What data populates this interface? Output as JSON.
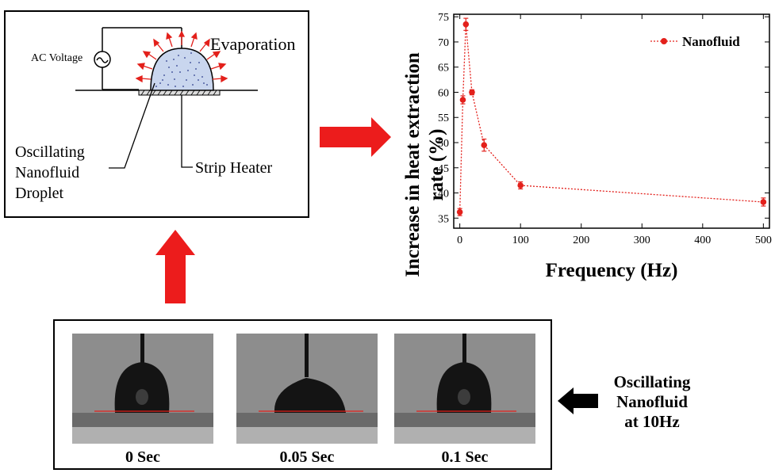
{
  "schematic": {
    "ac_voltage": "AC Voltage",
    "evaporation": "Evaporation",
    "droplet_label": [
      "Oscillating",
      "Nanofluid",
      "Droplet"
    ],
    "strip_heater": "Strip Heater"
  },
  "photos": [
    {
      "caption": "0 Sec"
    },
    {
      "caption": "0.05 Sec"
    },
    {
      "caption": "0.1 Sec"
    }
  ],
  "side_label": [
    "Oscillating",
    "Nanofluid",
    "at 10Hz"
  ],
  "colors": {
    "accent": "#e3201b",
    "arrow_black": "#000000"
  },
  "chart_data": {
    "type": "line",
    "title": "",
    "xlabel": "Frequency (Hz)",
    "ylabel": "Increase in heat extraction rate (%)",
    "ylabel_lines": [
      "Increase in heat extraction",
      "rate (%)"
    ],
    "xlim": [
      -10,
      510
    ],
    "ylim": [
      33,
      75.5
    ],
    "xticks": [
      0,
      100,
      200,
      300,
      400,
      500
    ],
    "yticks": [
      35,
      40,
      45,
      50,
      55,
      60,
      65,
      70,
      75
    ],
    "legend_position": "top-right",
    "grid": false,
    "series": [
      {
        "name": "Nanofluid",
        "color": "#e3201b",
        "x": [
          0,
          5,
          10,
          20,
          40,
          100,
          500
        ],
        "y": [
          36.2,
          58.5,
          73.5,
          60.0,
          49.5,
          41.5,
          38.2
        ],
        "err": [
          0.7,
          0.8,
          1.2,
          0.5,
          1.2,
          0.7,
          0.8
        ]
      }
    ]
  }
}
